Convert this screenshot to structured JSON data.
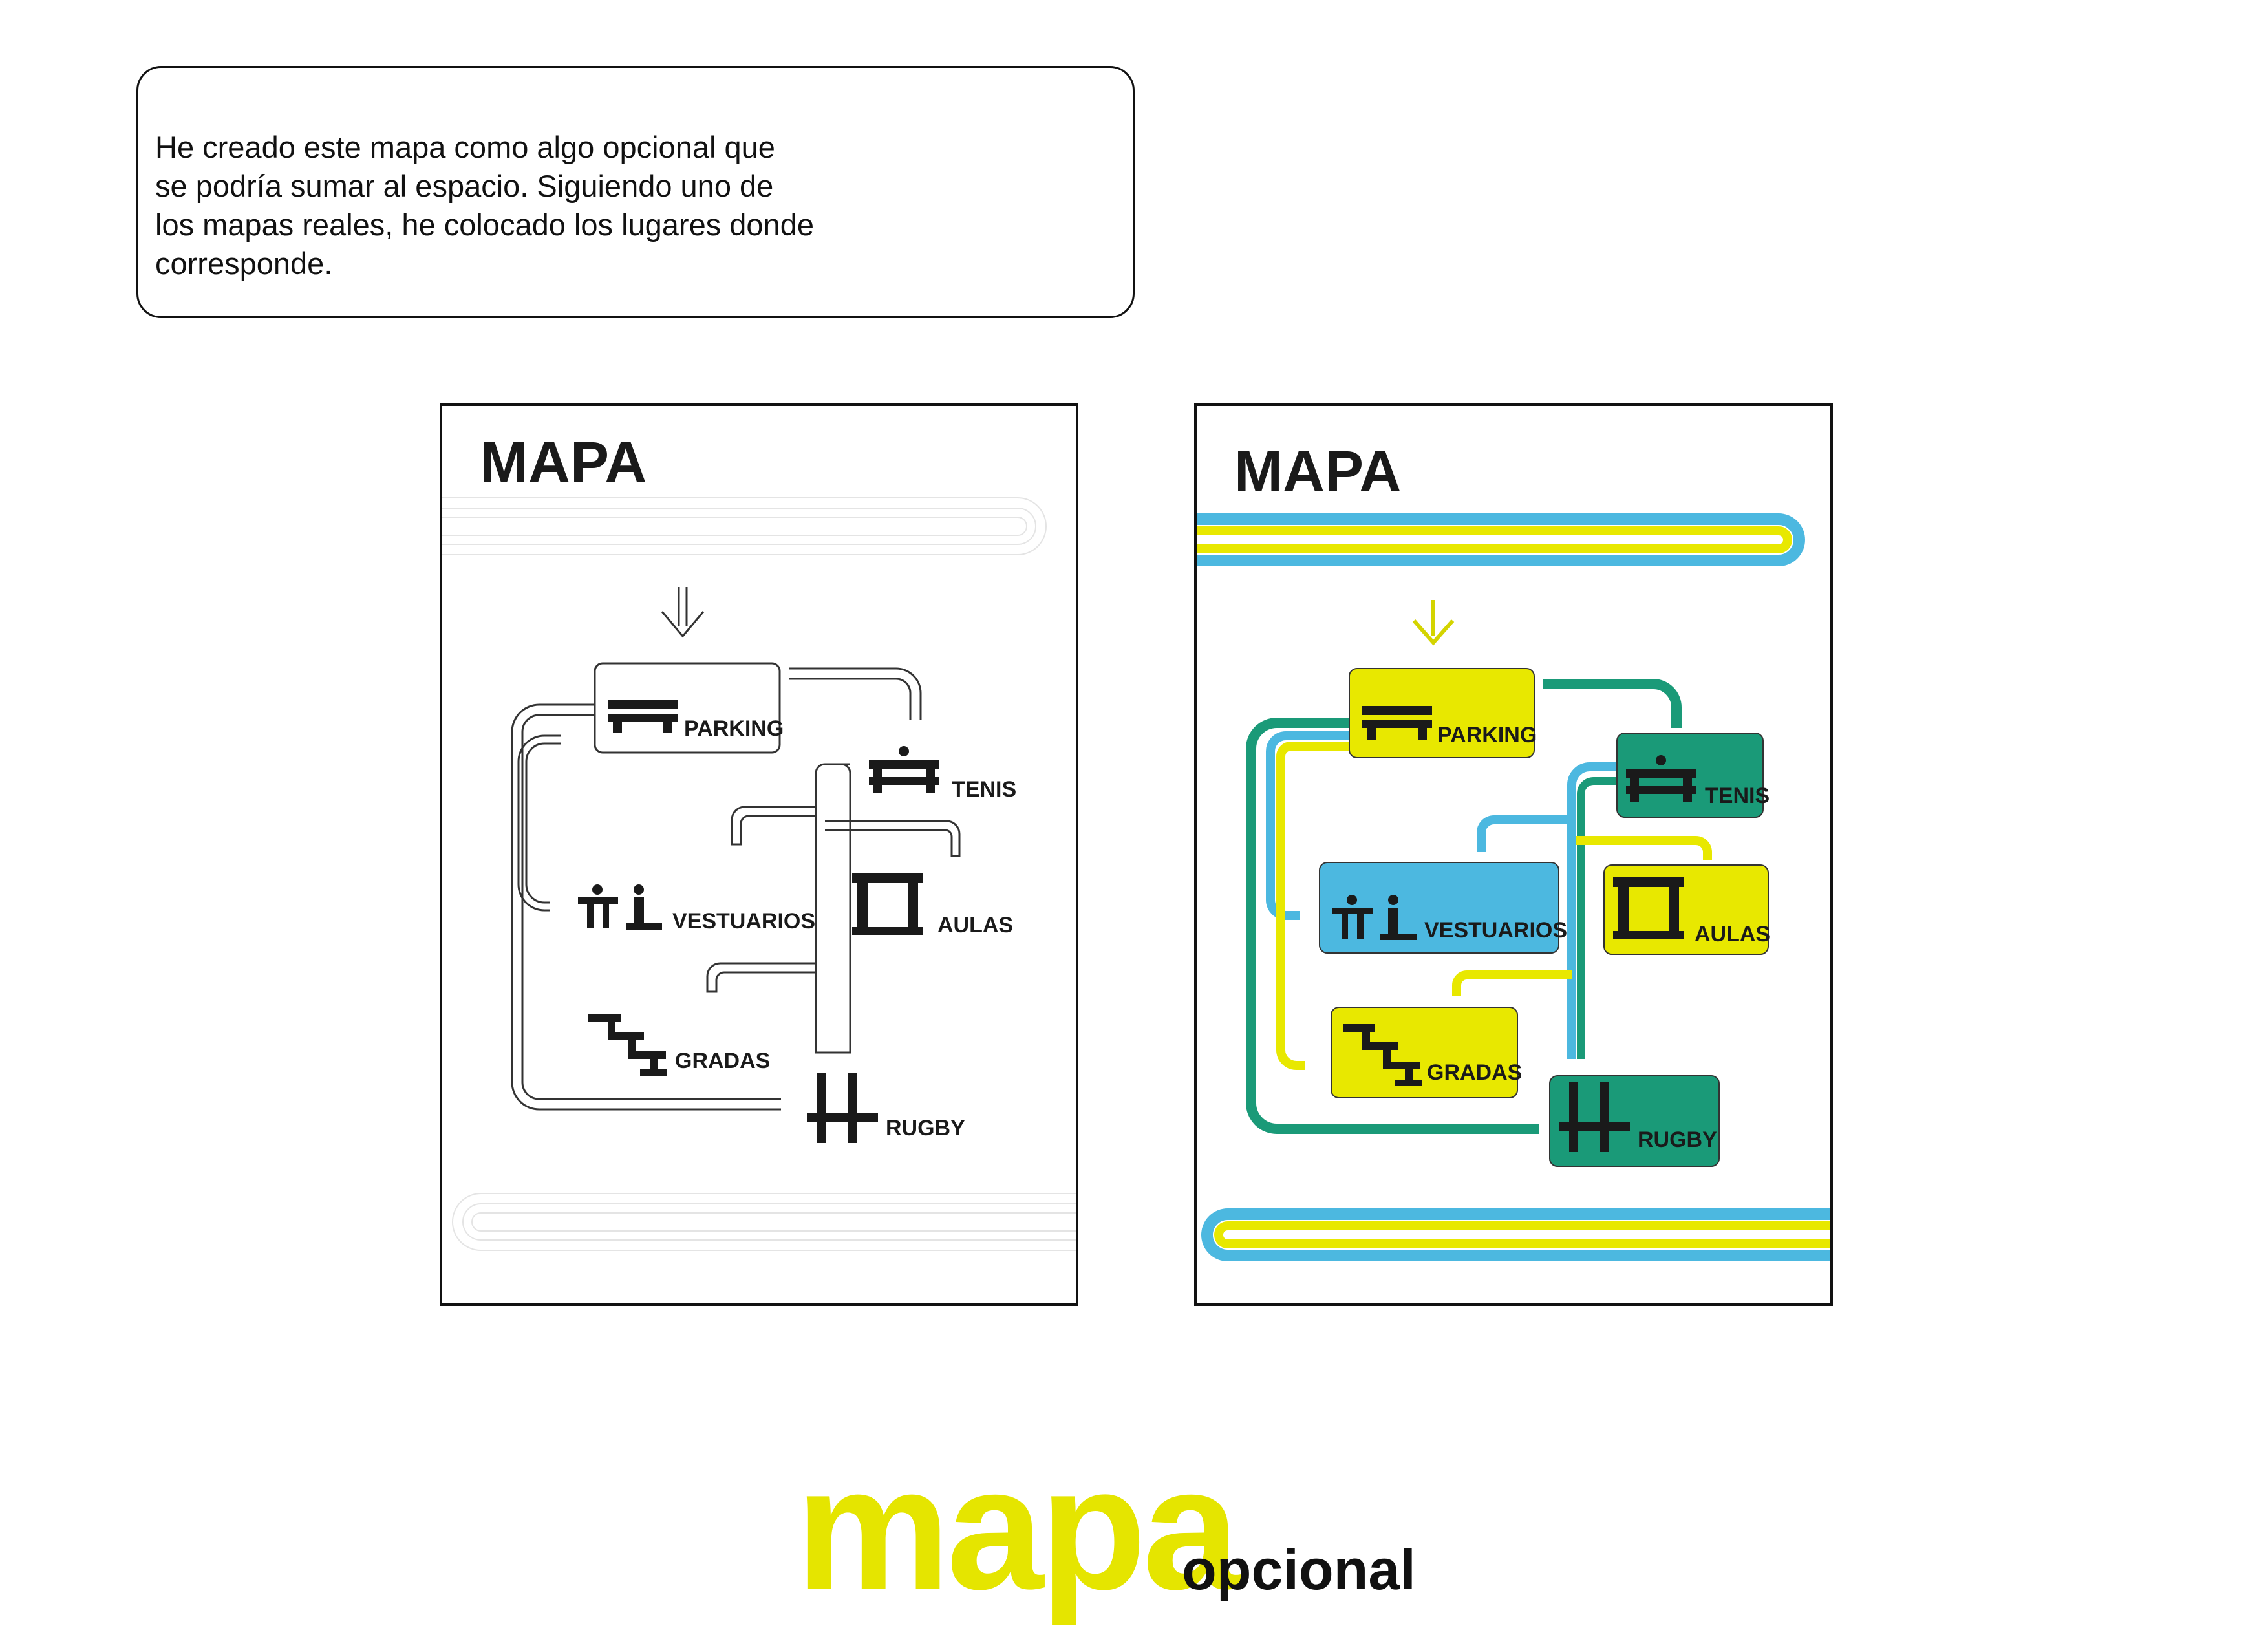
{
  "note": {
    "lines": [
      "He creado este mapa como algo opcional que",
      "se podría sumar al espacio. Siguiendo uno de",
      "los mapas reales, he colocado los lugares donde",
      "corresponde."
    ]
  },
  "map_left": {
    "title": "MAPA",
    "places": {
      "parking": "PARKING",
      "tenis": "TENIS",
      "vestuarios": "VESTUARIOS",
      "aulas": "AULAS",
      "gradas": "GRADAS",
      "rugby": "RUGBY"
    }
  },
  "map_right": {
    "title": "MAPA",
    "places": {
      "parking": "PARKING",
      "tenis": "TENIS",
      "vestuarios": "VESTUARIOS",
      "aulas": "AULAS",
      "gradas": "GRADAS",
      "rugby": "RUGBY"
    }
  },
  "colors": {
    "yellow": "#e8e800",
    "green": "#1a9a78",
    "blue": "#4cb8e0",
    "ink": "#1a1a1a"
  },
  "icons": [
    "bench-icon",
    "ping-pong-table-icon",
    "changing-room-people-icon",
    "classroom-door-icon",
    "stairs-icon",
    "rugby-goal-icon",
    "down-arrow-icon"
  ],
  "watermark": {
    "big": "mapa",
    "small": "opcional"
  }
}
